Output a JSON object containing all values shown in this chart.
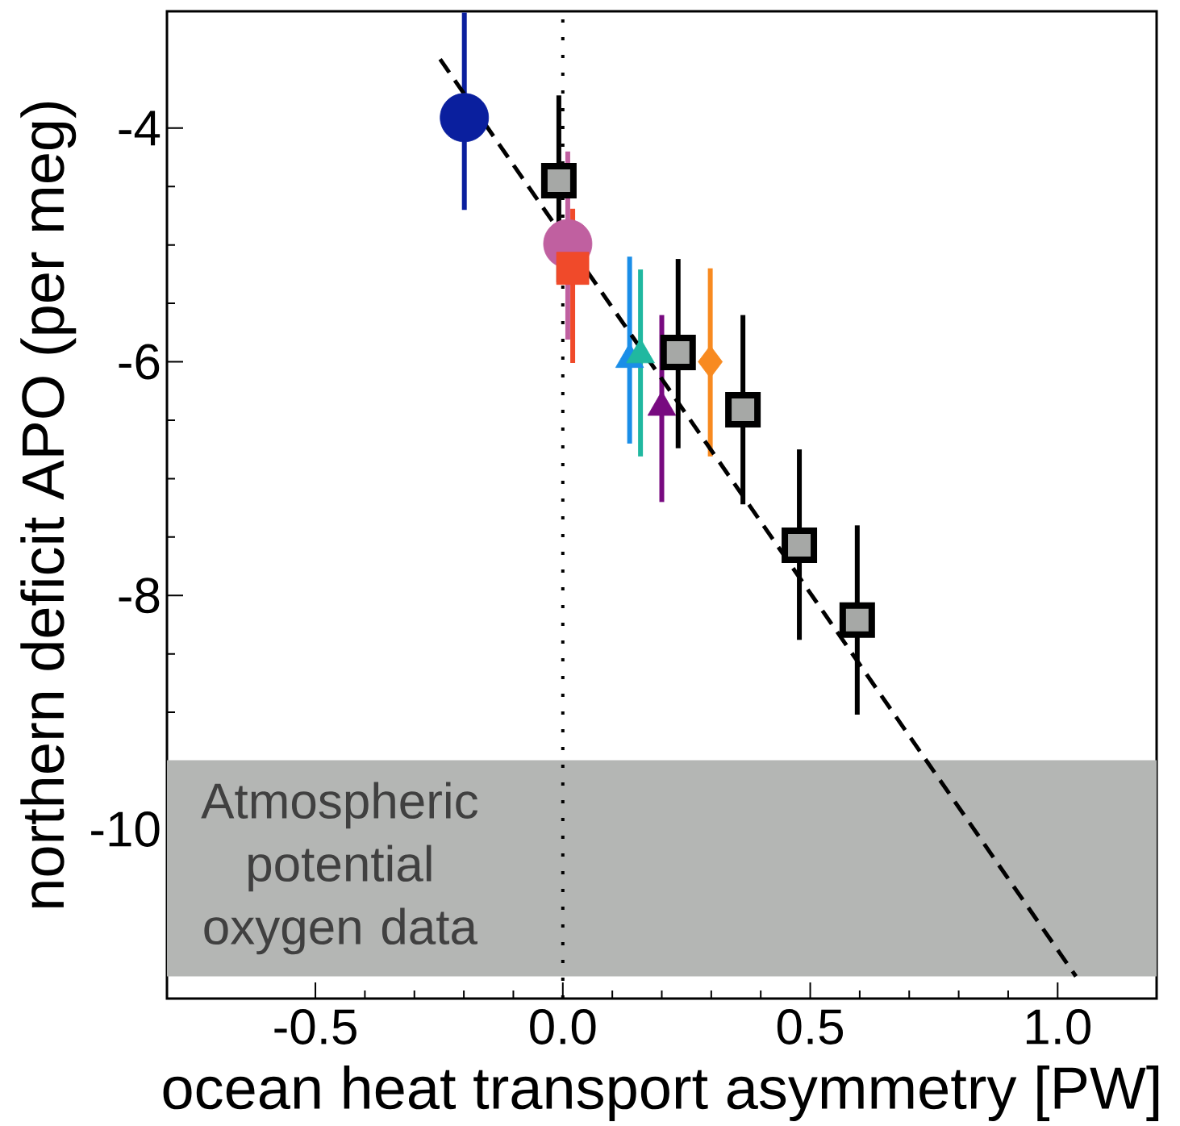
{
  "chart_data": {
    "type": "scatter",
    "xlabel": "ocean heat transport asymmetry [PW]",
    "ylabel": "northern deficit APO (per meg)",
    "xlim": [
      -0.8,
      1.2
    ],
    "ylim": [
      -11.45,
      -3.0
    ],
    "xticks": [
      -0.5,
      {
        "value": 0,
        "label": "0.0"
      },
      0.5,
      {
        "value": 1,
        "label": "1.0"
      }
    ],
    "yticks": [
      -10,
      -8,
      -6,
      -4
    ],
    "series": [
      {
        "color": "#0a1f9e",
        "marker": "circle",
        "x": [
          -0.199
        ],
        "values": [
          -3.91
        ],
        "errors": [
          [
            -4.7,
            -3.01
          ]
        ]
      },
      {
        "color": "#c060a0",
        "marker": "circle",
        "x": [
          0.01
        ],
        "values": [
          -4.99
        ],
        "errors": [
          [
            -5.81,
            -4.2
          ]
        ]
      },
      {
        "color": "#f04a2a",
        "marker": "square",
        "x": [
          0.02
        ],
        "values": [
          -5.2
        ],
        "errors": [
          [
            -6.01,
            -4.69
          ]
        ]
      },
      {
        "color": "#1a8ee8",
        "marker": "triangle",
        "x": [
          0.135
        ],
        "values": [
          -5.98
        ],
        "errors": [
          [
            -6.7,
            -5.1
          ]
        ]
      },
      {
        "color": "#20b8a0",
        "marker": "triangle",
        "x": [
          0.157
        ],
        "values": [
          -5.94
        ],
        "errors": [
          [
            -6.81,
            -5.21
          ]
        ]
      },
      {
        "color": "#f88a20",
        "marker": "diamond",
        "x": [
          0.298
        ],
        "values": [
          -6.0
        ],
        "errors": [
          [
            -6.81,
            -5.2
          ]
        ]
      },
      {
        "color": "#780a80",
        "marker": "triangle",
        "x": [
          0.2
        ],
        "values": [
          -6.39
        ],
        "errors": [
          [
            -7.2,
            -5.6
          ]
        ]
      },
      {
        "color": "#a6a8a6",
        "marker": "square",
        "x": [
          -0.008,
          0.233,
          0.364,
          0.478,
          0.595
        ],
        "values": [
          -4.45,
          -5.92,
          -6.41,
          -7.57,
          -8.21
        ],
        "errors": [
          [
            -5.32,
            -3.72
          ],
          [
            -6.74,
            -5.12
          ],
          [
            -7.22,
            -5.6
          ],
          [
            -8.38,
            -6.75
          ],
          [
            -9.02,
            -7.4
          ]
        ]
      },
      {
        "type": "line",
        "color": "#000000",
        "line_style": "dashed",
        "marker": "none",
        "x": [
          -0.248,
          1.037
        ],
        "values": [
          -3.41,
          -11.26
        ]
      }
    ],
    "ref_lines": [
      {
        "axis": "x",
        "value": 0,
        "color": "#000000",
        "line_style": "dotted"
      }
    ],
    "bands": [
      {
        "axis": "y",
        "from": -11.26,
        "to": -9.41,
        "label": "Atmospheric potential oxygen data",
        "color": "#b4b6b4"
      }
    ]
  }
}
